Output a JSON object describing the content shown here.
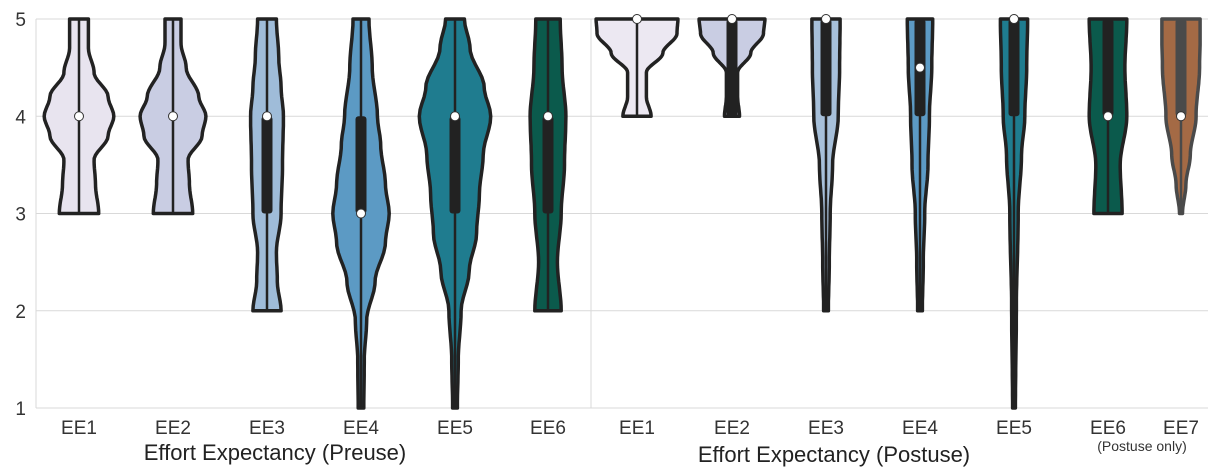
{
  "chart_data": {
    "type": "violin",
    "ylim": [
      1,
      5
    ],
    "yticks": [
      "1",
      "2",
      "3",
      "4",
      "5"
    ],
    "grid": true,
    "groups": [
      {
        "label": "Effort Expectancy (Preuse)",
        "items": [
          {
            "label": "EE1",
            "color": "#e8e4ef",
            "min": 3,
            "q1": 4,
            "median": 4,
            "q3": 4,
            "max": 5,
            "density": [
              [
                3,
                0.42
              ],
              [
                3.3,
                0.35
              ],
              [
                3.55,
                0.32
              ],
              [
                3.8,
                0.62
              ],
              [
                4,
                0.74
              ],
              [
                4.2,
                0.62
              ],
              [
                4.45,
                0.32
              ],
              [
                4.7,
                0.2
              ],
              [
                5,
                0.2
              ]
            ]
          },
          {
            "label": "EE2",
            "color": "#c9cde3",
            "min": 3,
            "q1": 4,
            "median": 4,
            "q3": 4,
            "max": 5,
            "density": [
              [
                3,
                0.42
              ],
              [
                3.3,
                0.35
              ],
              [
                3.55,
                0.32
              ],
              [
                3.8,
                0.62
              ],
              [
                4,
                0.7
              ],
              [
                4.2,
                0.55
              ],
              [
                4.5,
                0.28
              ],
              [
                4.75,
                0.17
              ],
              [
                5,
                0.17
              ]
            ]
          },
          {
            "label": "EE3",
            "color": "#9fbcd9",
            "min": 2,
            "q1": 3,
            "median": 4,
            "q3": 4,
            "max": 5,
            "density": [
              [
                2,
                0.3
              ],
              [
                2.3,
                0.22
              ],
              [
                2.6,
                0.2
              ],
              [
                3,
                0.3
              ],
              [
                3.5,
                0.33
              ],
              [
                4,
                0.35
              ],
              [
                4.3,
                0.3
              ],
              [
                4.6,
                0.25
              ],
              [
                5,
                0.2
              ]
            ]
          },
          {
            "label": "EE4",
            "color": "#5c9ac4",
            "min": 1,
            "q1": 3,
            "median": 3,
            "q3": 4,
            "max": 5,
            "density": [
              [
                1,
                0.06
              ],
              [
                1.5,
                0.07
              ],
              [
                1.9,
                0.12
              ],
              [
                2.3,
                0.3
              ],
              [
                2.7,
                0.52
              ],
              [
                3,
                0.6
              ],
              [
                3.3,
                0.52
              ],
              [
                3.7,
                0.42
              ],
              [
                4,
                0.35
              ],
              [
                4.5,
                0.24
              ],
              [
                5,
                0.17
              ]
            ]
          },
          {
            "label": "EE5",
            "color": "#1f7c8f",
            "min": 1,
            "q1": 3,
            "median": 4,
            "q3": 4,
            "max": 5,
            "density": [
              [
                1,
                0.05
              ],
              [
                1.5,
                0.07
              ],
              [
                2,
                0.13
              ],
              [
                2.4,
                0.3
              ],
              [
                2.8,
                0.46
              ],
              [
                3.2,
                0.52
              ],
              [
                3.6,
                0.6
              ],
              [
                4,
                0.76
              ],
              [
                4.3,
                0.62
              ],
              [
                4.7,
                0.32
              ],
              [
                5,
                0.2
              ]
            ]
          },
          {
            "label": "EE6",
            "color": "#0b5a4c",
            "min": 2,
            "q1": 3,
            "median": 4,
            "q3": 4,
            "max": 5,
            "density": [
              [
                2,
                0.28
              ],
              [
                2.5,
                0.2
              ],
              [
                3,
                0.28
              ],
              [
                3.5,
                0.35
              ],
              [
                4,
                0.38
              ],
              [
                4.5,
                0.3
              ],
              [
                5,
                0.26
              ]
            ]
          }
        ]
      },
      {
        "label": "Effort Expectancy (Postuse)",
        "items": [
          {
            "label": "EE1",
            "color": "#ece8f2",
            "min": 4,
            "q1": 5,
            "median": 5,
            "q3": 5,
            "max": 5,
            "density": [
              [
                4,
                0.3
              ],
              [
                4.2,
                0.2
              ],
              [
                4.45,
                0.2
              ],
              [
                4.65,
                0.55
              ],
              [
                4.85,
                0.85
              ],
              [
                5,
                0.87
              ]
            ]
          },
          {
            "label": "EE2",
            "color": "#c9cde3",
            "min": 4,
            "q1": 4,
            "median": 5,
            "q3": 5,
            "max": 5,
            "density": [
              [
                4,
                0.16
              ],
              [
                4.2,
                0.12
              ],
              [
                4.45,
                0.12
              ],
              [
                4.65,
                0.4
              ],
              [
                4.85,
                0.67
              ],
              [
                5,
                0.7
              ]
            ]
          },
          {
            "label": "EE3",
            "color": "#a7c0da",
            "min": 2,
            "q1": 4,
            "median": 5,
            "q3": 5,
            "max": 5,
            "density": [
              [
                2,
                0.05
              ],
              [
                2.5,
                0.07
              ],
              [
                3,
                0.09
              ],
              [
                3.5,
                0.14
              ],
              [
                4,
                0.26
              ],
              [
                4.5,
                0.29
              ],
              [
                5,
                0.3
              ]
            ]
          },
          {
            "label": "EE4",
            "color": "#5c9ac4",
            "min": 2,
            "q1": 4,
            "median": 4.5,
            "q3": 5,
            "max": 5,
            "density": [
              [
                2,
                0.05
              ],
              [
                2.5,
                0.07
              ],
              [
                3,
                0.1
              ],
              [
                3.5,
                0.17
              ],
              [
                4,
                0.2
              ],
              [
                4.5,
                0.25
              ],
              [
                5,
                0.27
              ]
            ]
          },
          {
            "label": "EE5",
            "color": "#1f7c8f",
            "min": 1,
            "q1": 4,
            "median": 5,
            "q3": 5,
            "max": 5,
            "density": [
              [
                1,
                0.03
              ],
              [
                2,
                0.05
              ],
              [
                3,
                0.09
              ],
              [
                3.6,
                0.16
              ],
              [
                4,
                0.23
              ],
              [
                4.5,
                0.27
              ],
              [
                5,
                0.29
              ]
            ]
          },
          {
            "label": "EE6",
            "color": "#0b5a4c",
            "min": 3,
            "q1": 4,
            "median": 4,
            "q3": 5,
            "max": 5,
            "density": [
              [
                3,
                0.3
              ],
              [
                3.5,
                0.26
              ],
              [
                4,
                0.4
              ],
              [
                4.5,
                0.36
              ],
              [
                5,
                0.4
              ]
            ]
          },
          {
            "label": "EE7",
            "color": "#a46a45",
            "min": 3,
            "q1": 4,
            "median": 4,
            "q3": 5,
            "max": 5,
            "density": [
              [
                3,
                0.05
              ],
              [
                3.3,
                0.17
              ],
              [
                3.6,
                0.32
              ],
              [
                4,
                0.52
              ],
              [
                4.5,
                0.64
              ],
              [
                4.8,
                0.66
              ],
              [
                5,
                0.66
              ]
            ]
          }
        ]
      }
    ],
    "annotations": [
      "(Postuse only)"
    ]
  }
}
